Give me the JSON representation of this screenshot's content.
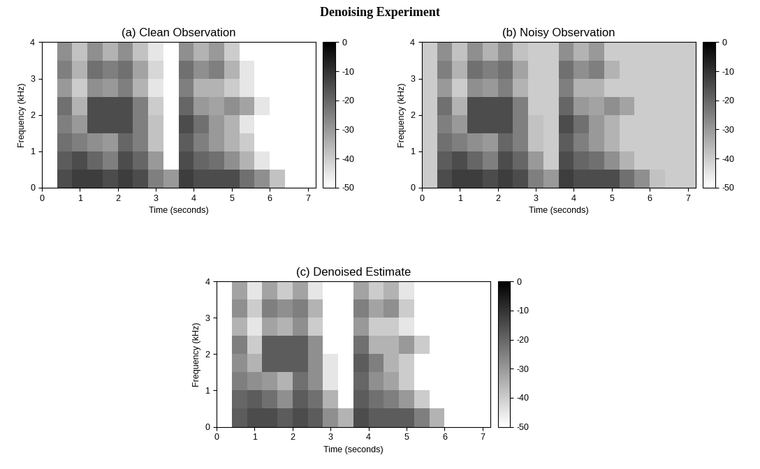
{
  "title": "Denoising Experiment",
  "chart_data": [
    {
      "type": "heatmap",
      "title": "(a) Clean Observation",
      "x_label": "Time (seconds)",
      "y_label": "Frequency (kHz)",
      "xlim": [
        0,
        7.2
      ],
      "xticks": [
        0,
        1,
        2,
        3,
        4,
        5,
        6,
        7
      ],
      "ylim": [
        0,
        4
      ],
      "yticks": [
        0,
        1,
        2,
        3,
        4
      ],
      "x_edges": [
        0,
        0.4,
        0.8,
        1.2,
        1.6,
        2.0,
        2.4,
        2.8,
        3.2,
        3.6,
        4.0,
        4.4,
        4.8,
        5.2,
        5.6,
        6.0,
        6.4,
        6.8,
        7.2
      ],
      "y_edges": [
        0,
        0.5,
        1.0,
        1.5,
        2.0,
        2.5,
        3.0,
        3.5,
        4.0
      ],
      "cells": [
        [
          -50,
          -15,
          -12,
          -12,
          -15,
          -12,
          -15,
          -25,
          -30,
          -12,
          -15,
          -15,
          -15,
          -22,
          -28,
          -38,
          -50,
          -50
        ],
        [
          -50,
          -18,
          -15,
          -20,
          -25,
          -15,
          -20,
          -30,
          -50,
          -15,
          -20,
          -22,
          -28,
          -35,
          -45,
          -50,
          -50,
          -50
        ],
        [
          -50,
          -22,
          -25,
          -28,
          -30,
          -20,
          -25,
          -38,
          -50,
          -18,
          -25,
          -30,
          -35,
          -40,
          -50,
          -50,
          -50,
          -50
        ],
        [
          -50,
          -25,
          -30,
          -15,
          -15,
          -15,
          -25,
          -38,
          -50,
          -15,
          -22,
          -30,
          -35,
          -45,
          -50,
          -50,
          -50,
          -50
        ],
        [
          -50,
          -22,
          -35,
          -15,
          -15,
          -15,
          -25,
          -40,
          -50,
          -20,
          -30,
          -32,
          -28,
          -32,
          -45,
          -50,
          -50,
          -50
        ],
        [
          -50,
          -30,
          -40,
          -28,
          -30,
          -25,
          -35,
          -45,
          -50,
          -25,
          -35,
          -35,
          -40,
          -45,
          -50,
          -50,
          -50,
          -50
        ],
        [
          -50,
          -25,
          -35,
          -22,
          -25,
          -22,
          -32,
          -42,
          -50,
          -22,
          -28,
          -25,
          -35,
          -45,
          -50,
          -50,
          -50,
          -50
        ],
        [
          -50,
          -28,
          -38,
          -28,
          -35,
          -28,
          -38,
          -45,
          -50,
          -28,
          -35,
          -30,
          -40,
          -50,
          -50,
          -50,
          -50,
          -50
        ]
      ],
      "colorbar_range": [
        -50,
        0
      ],
      "colorbar_ticks": [
        0,
        -10,
        -20,
        -30,
        -40,
        -50
      ]
    },
    {
      "type": "heatmap",
      "title": "(b) Noisy Observation",
      "x_label": "Time (seconds)",
      "y_label": "Frequency (kHz)",
      "xlim": [
        0,
        7.2
      ],
      "xticks": [
        0,
        1,
        2,
        3,
        4,
        5,
        6,
        7
      ],
      "ylim": [
        0,
        4
      ],
      "yticks": [
        0,
        1,
        2,
        3,
        4
      ],
      "x_edges": [
        0,
        0.4,
        0.8,
        1.2,
        1.6,
        2.0,
        2.4,
        2.8,
        3.2,
        3.6,
        4.0,
        4.4,
        4.8,
        5.2,
        5.6,
        6.0,
        6.4,
        6.8,
        7.2
      ],
      "y_edges": [
        0,
        0.5,
        1.0,
        1.5,
        2.0,
        2.5,
        3.0,
        3.5,
        4.0
      ],
      "cells": [
        [
          -40,
          -15,
          -12,
          -12,
          -15,
          -12,
          -15,
          -25,
          -30,
          -12,
          -15,
          -15,
          -15,
          -22,
          -28,
          -38,
          -40,
          -40
        ],
        [
          -40,
          -18,
          -15,
          -20,
          -25,
          -15,
          -20,
          -30,
          -40,
          -15,
          -20,
          -22,
          -28,
          -35,
          -40,
          -40,
          -40,
          -40
        ],
        [
          -40,
          -22,
          -25,
          -28,
          -30,
          -20,
          -25,
          -38,
          -40,
          -18,
          -25,
          -30,
          -35,
          -40,
          -40,
          -40,
          -40,
          -40
        ],
        [
          -40,
          -25,
          -30,
          -15,
          -15,
          -15,
          -25,
          -38,
          -40,
          -15,
          -22,
          -30,
          -35,
          -40,
          -40,
          -40,
          -40,
          -40
        ],
        [
          -40,
          -22,
          -35,
          -15,
          -15,
          -15,
          -25,
          -40,
          -40,
          -20,
          -30,
          -32,
          -28,
          -32,
          -40,
          -40,
          -40,
          -40
        ],
        [
          -40,
          -30,
          -40,
          -28,
          -30,
          -25,
          -35,
          -40,
          -40,
          -25,
          -35,
          -35,
          -40,
          -40,
          -40,
          -40,
          -40,
          -40
        ],
        [
          -40,
          -25,
          -35,
          -22,
          -25,
          -22,
          -32,
          -40,
          -40,
          -22,
          -28,
          -25,
          -35,
          -40,
          -40,
          -40,
          -40,
          -40
        ],
        [
          -40,
          -28,
          -38,
          -28,
          -35,
          -28,
          -38,
          -40,
          -40,
          -28,
          -35,
          -30,
          -40,
          -40,
          -40,
          -40,
          -40,
          -40
        ]
      ],
      "colorbar_range": [
        -50,
        0
      ],
      "colorbar_ticks": [
        0,
        -10,
        -20,
        -30,
        -40,
        -50
      ]
    },
    {
      "type": "heatmap",
      "title": "(c) Denoised Estimate",
      "x_label": "Time (seconds)",
      "y_label": "Frequency (kHz)",
      "xlim": [
        0,
        7.2
      ],
      "xticks": [
        0,
        1,
        2,
        3,
        4,
        5,
        6,
        7
      ],
      "ylim": [
        0,
        4
      ],
      "yticks": [
        0,
        1,
        2,
        3,
        4
      ],
      "x_edges": [
        0,
        0.4,
        0.8,
        1.2,
        1.6,
        2.0,
        2.4,
        2.8,
        3.2,
        3.6,
        4.0,
        4.4,
        4.8,
        5.2,
        5.6,
        6.0,
        6.4,
        6.8,
        7.2
      ],
      "y_edges": [
        0,
        0.5,
        1.0,
        1.5,
        2.0,
        2.5,
        3.0,
        3.5,
        4.0
      ],
      "cells": [
        [
          -50,
          -18,
          -15,
          -15,
          -18,
          -15,
          -18,
          -28,
          -35,
          -15,
          -18,
          -18,
          -18,
          -25,
          -35,
          -50,
          -50,
          -50
        ],
        [
          -50,
          -20,
          -18,
          -22,
          -28,
          -18,
          -22,
          -35,
          -50,
          -18,
          -22,
          -25,
          -30,
          -40,
          -50,
          -50,
          -50,
          -50
        ],
        [
          -50,
          -25,
          -28,
          -30,
          -35,
          -22,
          -28,
          -45,
          -50,
          -20,
          -28,
          -32,
          -40,
          -50,
          -50,
          -50,
          -50,
          -50
        ],
        [
          -50,
          -28,
          -35,
          -18,
          -18,
          -18,
          -28,
          -45,
          -50,
          -18,
          -25,
          -35,
          -40,
          -50,
          -50,
          -50,
          -50,
          -50
        ],
        [
          -50,
          -25,
          -40,
          -18,
          -18,
          -18,
          -28,
          -50,
          -50,
          -22,
          -35,
          -35,
          -30,
          -40,
          -50,
          -50,
          -50,
          -50
        ],
        [
          -50,
          -35,
          -45,
          -32,
          -35,
          -28,
          -40,
          -50,
          -50,
          -30,
          -40,
          -40,
          -45,
          -50,
          -50,
          -50,
          -50,
          -50
        ],
        [
          -50,
          -28,
          -40,
          -25,
          -28,
          -25,
          -35,
          -50,
          -50,
          -25,
          -32,
          -28,
          -40,
          -50,
          -50,
          -50,
          -50,
          -50
        ],
        [
          -50,
          -32,
          -45,
          -32,
          -40,
          -32,
          -45,
          -50,
          -50,
          -32,
          -40,
          -35,
          -45,
          -50,
          -50,
          -50,
          -50,
          -50
        ]
      ],
      "colorbar_range": [
        -50,
        0
      ],
      "colorbar_ticks": [
        0,
        -10,
        -20,
        -30,
        -40,
        -50
      ]
    }
  ]
}
